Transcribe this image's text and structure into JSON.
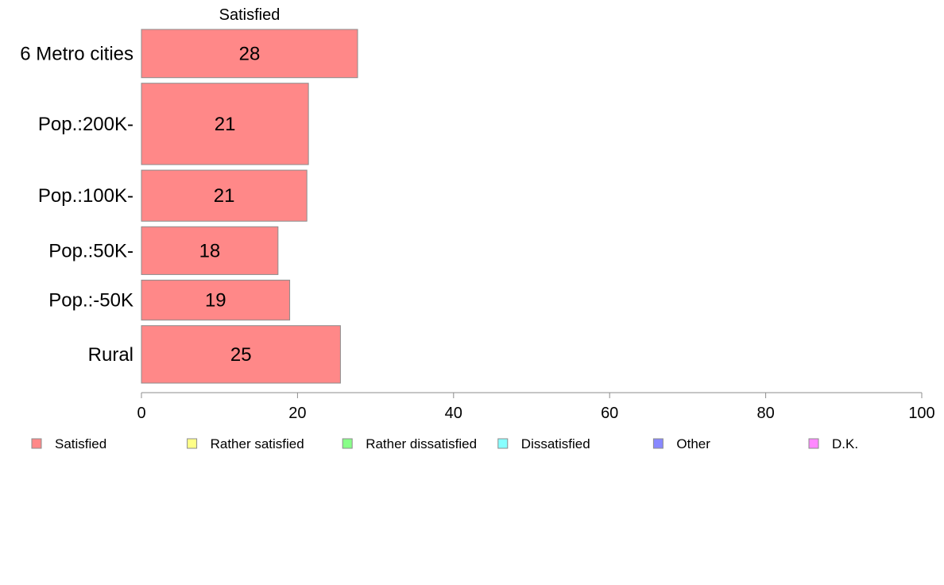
{
  "chart_data": {
    "type": "bar",
    "orientation": "horizontal",
    "stacked": true,
    "title": "Satisfied",
    "categories": [
      "6 Metro cities",
      "Pop.:200K-",
      "Pop.:100K-",
      "Pop.:50K-",
      "Pop.:-50K",
      "Rural"
    ],
    "bar_weights": [
      0.105,
      0.177,
      0.111,
      0.104,
      0.087,
      0.125
    ],
    "series": [
      {
        "name": "Satisfied",
        "color": "#ff8888",
        "values": [
          27.7,
          21.4,
          21.2,
          17.5,
          19.0,
          25.5
        ],
        "labels": [
          "28",
          "21",
          "21",
          "18",
          "19",
          "25"
        ]
      },
      {
        "name": "Rather satisfied",
        "color": "#ffff88",
        "values": [
          null,
          null,
          null,
          null,
          null,
          null
        ]
      },
      {
        "name": "Rather dissatisfied",
        "color": "#88ff88",
        "values": [
          null,
          null,
          null,
          null,
          null,
          null
        ]
      },
      {
        "name": "Dissatisfied",
        "color": "#88ffff",
        "values": [
          null,
          null,
          null,
          null,
          null,
          null
        ]
      },
      {
        "name": "Other",
        "color": "#8888ff",
        "values": [
          null,
          null,
          null,
          null,
          null,
          null
        ]
      },
      {
        "name": "D.K.",
        "color": "#ff88ff",
        "values": [
          null,
          null,
          null,
          null,
          null,
          null
        ]
      }
    ],
    "xlim": [
      0,
      100
    ],
    "xticks": [
      0,
      20,
      40,
      60,
      80,
      100
    ],
    "xlabel": "",
    "ylabel": "",
    "grid": false,
    "legend_position": "bottom"
  }
}
